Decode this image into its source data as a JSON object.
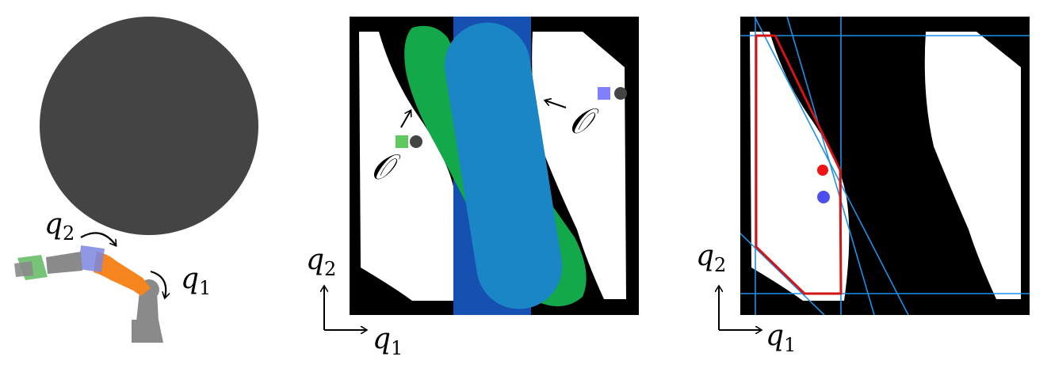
{
  "panels": {
    "robot": {
      "joint_labels": {
        "q1": "q",
        "q1_sub": "1",
        "q2": "q",
        "q2_sub": "2"
      },
      "colors": {
        "obstacle": "#444444",
        "link_gray": "#8a8a8a",
        "link_orange": "#f6851f",
        "joint_blue": "#7a86e0",
        "end_green": "#5fb85f"
      }
    },
    "config_space": {
      "obstacle_symbol": "𝒪",
      "axes": {
        "x": "q",
        "x_sub": "1",
        "y": "q",
        "y_sub": "2"
      },
      "colors": {
        "background": "#000000",
        "free": "#ffffff",
        "green_region": "#13a94a",
        "blue_band": "#1650b0",
        "blue_region": "#1b86c6",
        "marker_blue": "#8080ff",
        "marker_green": "#5fc85f",
        "marker_dark": "#444444"
      }
    },
    "polytope": {
      "axes": {
        "x": "q",
        "x_sub": "1",
        "y": "q",
        "y_sub": "2"
      },
      "colors": {
        "background": "#000000",
        "free": "#ffffff",
        "lines": "#1e90e6",
        "polytope": "#d21414",
        "point_red": "#f01414",
        "point_blue": "#4d4df0"
      }
    }
  }
}
